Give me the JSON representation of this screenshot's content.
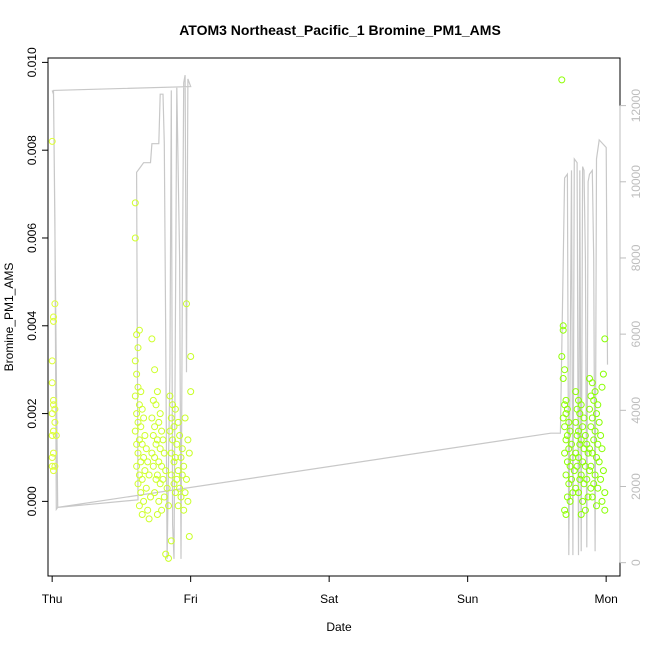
{
  "chart_data": {
    "type": "scatter",
    "title": "ATOM3 Northeast_Pacific_1 Bromine_PM1_AMS",
    "xlabel": "Date",
    "ylabel": "Bromine_PM1_AMS",
    "x_ticks": [
      "Thu",
      "Fri",
      "Sat",
      "Sun",
      "Mon"
    ],
    "x_range_days": [
      -0.03,
      4.1
    ],
    "y_ticks": [
      "0.000",
      "0.002",
      "0.004",
      "0.006",
      "0.008",
      "0.010"
    ],
    "ylim": [
      -0.0017,
      0.0101
    ],
    "y2_ticks": [
      "0",
      "2000",
      "4000",
      "6000",
      "8000",
      "10000",
      "12000"
    ],
    "y2lim": [
      -350,
      13250
    ],
    "grid": false,
    "point_color_start": "#ddff33",
    "point_color_end": "#88ff00",
    "line_color": "#c8c8c8",
    "series": [
      {
        "type": "scatter",
        "note_points": "Bromine_PM1_AMS measurements; x = day offset from Thu 00:00",
        "points": [
          [
            0.0,
            0.0082
          ],
          [
            0.01,
            0.0042
          ],
          [
            0.02,
            0.0045
          ],
          [
            0.01,
            0.0041
          ],
          [
            0.0,
            0.0032
          ],
          [
            0.0,
            0.0027
          ],
          [
            0.01,
            0.0023
          ],
          [
            0.01,
            0.0022
          ],
          [
            0.02,
            0.0021
          ],
          [
            0.0,
            0.002
          ],
          [
            0.02,
            0.0018
          ],
          [
            0.01,
            0.0016
          ],
          [
            0.0,
            0.0015
          ],
          [
            0.03,
            0.0015
          ],
          [
            0.01,
            0.0011
          ],
          [
            0.0,
            0.001
          ],
          [
            0.02,
            0.0008
          ],
          [
            0.0,
            0.0008
          ],
          [
            0.01,
            0.0007
          ],
          [
            0.6,
            0.0068
          ],
          [
            0.6,
            0.006
          ],
          [
            0.61,
            0.0038
          ],
          [
            0.63,
            0.0039
          ],
          [
            0.62,
            0.0035
          ],
          [
            0.6,
            0.0032
          ],
          [
            0.61,
            0.0029
          ],
          [
            0.62,
            0.0026
          ],
          [
            0.64,
            0.0025
          ],
          [
            0.6,
            0.0024
          ],
          [
            0.63,
            0.0022
          ],
          [
            0.65,
            0.0021
          ],
          [
            0.61,
            0.002
          ],
          [
            0.66,
            0.0019
          ],
          [
            0.62,
            0.0018
          ],
          [
            0.64,
            0.0017
          ],
          [
            0.6,
            0.0016
          ],
          [
            0.67,
            0.0015
          ],
          [
            0.63,
            0.0014
          ],
          [
            0.61,
            0.0013
          ],
          [
            0.65,
            0.0013
          ],
          [
            0.68,
            0.0012
          ],
          [
            0.62,
            0.0011
          ],
          [
            0.66,
            0.001
          ],
          [
            0.64,
            0.0009
          ],
          [
            0.69,
            0.0009
          ],
          [
            0.61,
            0.0008
          ],
          [
            0.67,
            0.0007
          ],
          [
            0.63,
            0.0006
          ],
          [
            0.7,
            0.0006
          ],
          [
            0.65,
            0.0005
          ],
          [
            0.62,
            0.0004
          ],
          [
            0.68,
            0.0003
          ],
          [
            0.64,
            0.0002
          ],
          [
            0.71,
            0.0001
          ],
          [
            0.66,
            0.0
          ],
          [
            0.63,
            -0.0001
          ],
          [
            0.69,
            -0.0002
          ],
          [
            0.65,
            -0.0003
          ],
          [
            0.7,
            -0.0004
          ],
          [
            0.72,
            0.0037
          ],
          [
            0.74,
            0.003
          ],
          [
            0.76,
            0.0025
          ],
          [
            0.73,
            0.0023
          ],
          [
            0.75,
            0.0022
          ],
          [
            0.78,
            0.002
          ],
          [
            0.72,
            0.0019
          ],
          [
            0.77,
            0.0018
          ],
          [
            0.74,
            0.0017
          ],
          [
            0.79,
            0.0016
          ],
          [
            0.73,
            0.0015
          ],
          [
            0.76,
            0.0014
          ],
          [
            0.8,
            0.0014
          ],
          [
            0.75,
            0.0013
          ],
          [
            0.78,
            0.0012
          ],
          [
            0.72,
            0.0011
          ],
          [
            0.81,
            0.0011
          ],
          [
            0.74,
            0.001
          ],
          [
            0.77,
            0.0009
          ],
          [
            0.79,
            0.0008
          ],
          [
            0.73,
            0.0008
          ],
          [
            0.82,
            0.0007
          ],
          [
            0.76,
            0.0006
          ],
          [
            0.8,
            0.0005
          ],
          [
            0.75,
            0.0005
          ],
          [
            0.78,
            0.0004
          ],
          [
            0.83,
            0.0003
          ],
          [
            0.74,
            0.0002
          ],
          [
            0.81,
            0.0001
          ],
          [
            0.77,
            0.0
          ],
          [
            0.84,
            -0.0001
          ],
          [
            0.79,
            -0.0002
          ],
          [
            0.76,
            -0.0003
          ],
          [
            0.82,
            -0.0012
          ],
          [
            0.84,
            -0.0013
          ],
          [
            0.86,
            -0.0009
          ],
          [
            0.85,
            0.0024
          ],
          [
            0.87,
            0.0022
          ],
          [
            0.89,
            0.0021
          ],
          [
            0.86,
            0.0019
          ],
          [
            0.91,
            0.0018
          ],
          [
            0.88,
            0.0017
          ],
          [
            0.85,
            0.0016
          ],
          [
            0.92,
            0.0015
          ],
          [
            0.87,
            0.0014
          ],
          [
            0.9,
            0.0013
          ],
          [
            0.94,
            0.0012
          ],
          [
            0.86,
            0.0011
          ],
          [
            0.89,
            0.001
          ],
          [
            0.93,
            0.001
          ],
          [
            0.88,
            0.0009
          ],
          [
            0.95,
            0.0008
          ],
          [
            0.91,
            0.0007
          ],
          [
            0.86,
            0.0006
          ],
          [
            0.94,
            0.0006
          ],
          [
            0.9,
            0.0005
          ],
          [
            0.97,
            0.0005
          ],
          [
            0.88,
            0.0004
          ],
          [
            0.92,
            0.0003
          ],
          [
            0.96,
            0.0002
          ],
          [
            0.89,
            0.0002
          ],
          [
            0.93,
            0.0001
          ],
          [
            0.98,
            0.0
          ],
          [
            0.91,
            -0.0001
          ],
          [
            0.95,
            -0.0002
          ],
          [
            0.99,
            0.0011
          ],
          [
            0.97,
            0.0045
          ],
          [
            1.0,
            0.0033
          ],
          [
            1.0,
            0.0025
          ],
          [
            0.99,
            -0.0008
          ],
          [
            0.96,
            0.0019
          ],
          [
            0.98,
            0.0014
          ],
          [
            3.68,
            0.0096
          ],
          [
            3.69,
            0.004
          ],
          [
            3.69,
            0.0039
          ],
          [
            3.68,
            0.0033
          ],
          [
            3.7,
            0.003
          ],
          [
            3.69,
            0.0028
          ],
          [
            3.71,
            0.0023
          ],
          [
            3.7,
            0.0022
          ],
          [
            3.72,
            0.0021
          ],
          [
            3.71,
            0.002
          ],
          [
            3.69,
            0.0019
          ],
          [
            3.73,
            0.0018
          ],
          [
            3.7,
            0.0017
          ],
          [
            3.74,
            0.0016
          ],
          [
            3.72,
            0.0015
          ],
          [
            3.71,
            0.0014
          ],
          [
            3.75,
            0.0013
          ],
          [
            3.73,
            0.0012
          ],
          [
            3.7,
            0.0011
          ],
          [
            3.76,
            0.001
          ],
          [
            3.72,
            0.0009
          ],
          [
            3.74,
            0.0008
          ],
          [
            3.77,
            0.0007
          ],
          [
            3.71,
            0.0006
          ],
          [
            3.75,
            0.0005
          ],
          [
            3.73,
            0.0004
          ],
          [
            3.78,
            0.0003
          ],
          [
            3.76,
            0.0002
          ],
          [
            3.72,
            0.0001
          ],
          [
            3.74,
            0.0
          ],
          [
            3.7,
            -0.0002
          ],
          [
            3.71,
            -0.0003
          ],
          [
            3.78,
            0.0025
          ],
          [
            3.8,
            0.0023
          ],
          [
            3.82,
            0.0022
          ],
          [
            3.79,
            0.0021
          ],
          [
            3.81,
            0.002
          ],
          [
            3.84,
            0.0019
          ],
          [
            3.78,
            0.0018
          ],
          [
            3.83,
            0.0017
          ],
          [
            3.8,
            0.0016
          ],
          [
            3.85,
            0.0015
          ],
          [
            3.79,
            0.0015
          ],
          [
            3.82,
            0.0014
          ],
          [
            3.86,
            0.0013
          ],
          [
            3.81,
            0.0013
          ],
          [
            3.84,
            0.0012
          ],
          [
            3.78,
            0.0011
          ],
          [
            3.87,
            0.0011
          ],
          [
            3.8,
            0.001
          ],
          [
            3.83,
            0.0009
          ],
          [
            3.85,
            0.0008
          ],
          [
            3.79,
            0.0008
          ],
          [
            3.88,
            0.0007
          ],
          [
            3.82,
            0.0006
          ],
          [
            3.86,
            0.0005
          ],
          [
            3.81,
            0.0005
          ],
          [
            3.84,
            0.0004
          ],
          [
            3.89,
            0.0003
          ],
          [
            3.8,
            0.0002
          ],
          [
            3.87,
            0.0001
          ],
          [
            3.83,
            0.0
          ],
          [
            3.85,
            -0.0002
          ],
          [
            3.82,
            -0.0003
          ],
          [
            3.88,
            0.0028
          ],
          [
            3.9,
            0.0027
          ],
          [
            3.92,
            0.0025
          ],
          [
            3.89,
            0.0024
          ],
          [
            3.91,
            0.0023
          ],
          [
            3.94,
            0.0022
          ],
          [
            3.88,
            0.0021
          ],
          [
            3.93,
            0.002
          ],
          [
            3.9,
            0.0019
          ],
          [
            3.95,
            0.0018
          ],
          [
            3.89,
            0.0017
          ],
          [
            3.92,
            0.0016
          ],
          [
            3.96,
            0.0015
          ],
          [
            3.91,
            0.0014
          ],
          [
            3.94,
            0.0013
          ],
          [
            3.88,
            0.0012
          ],
          [
            3.97,
            0.0012
          ],
          [
            3.9,
            0.0011
          ],
          [
            3.93,
            0.001
          ],
          [
            3.95,
            0.0009
          ],
          [
            3.89,
            0.0008
          ],
          [
            3.98,
            0.0007
          ],
          [
            3.92,
            0.0006
          ],
          [
            3.96,
            0.0005
          ],
          [
            3.91,
            0.0004
          ],
          [
            3.94,
            0.0003
          ],
          [
            3.99,
            0.0002
          ],
          [
            3.9,
            0.0001
          ],
          [
            3.97,
            0.0
          ],
          [
            3.93,
            -0.0001
          ],
          [
            3.99,
            0.0037
          ],
          [
            3.98,
            0.0029
          ],
          [
            3.97,
            0.0026
          ],
          [
            3.99,
            -0.0002
          ]
        ]
      },
      {
        "type": "line",
        "axis": "right",
        "note_line": "grey secondary series, values on right axis; x = day offset from Thu 00:00",
        "points": [
          [
            0.0,
            12400
          ],
          [
            0.01,
            12300
          ],
          [
            0.02,
            9000
          ],
          [
            0.03,
            1400
          ],
          [
            0.04,
            1450
          ],
          [
            0.62,
            1650
          ],
          [
            0.61,
            10250
          ],
          [
            0.64,
            10400
          ],
          [
            0.66,
            10500
          ],
          [
            0.71,
            10500
          ],
          [
            0.72,
            11000
          ],
          [
            0.77,
            11000
          ],
          [
            0.78,
            12300
          ],
          [
            0.8,
            12300
          ],
          [
            0.81,
            11000
          ],
          [
            0.82,
            6000
          ],
          [
            0.83,
            100
          ],
          [
            0.85,
            5000
          ],
          [
            0.86,
            12400
          ],
          [
            0.87,
            1000
          ],
          [
            0.88,
            100
          ],
          [
            0.9,
            12500
          ],
          [
            0.92,
            8000
          ],
          [
            0.93,
            100
          ],
          [
            0.94,
            7000
          ],
          [
            0.95,
            12600
          ],
          [
            0.96,
            12800
          ],
          [
            0.97,
            5000
          ],
          [
            0.98,
            12700
          ],
          [
            1.0,
            12500
          ],
          [
            0.01,
            12400
          ],
          [
            0.04,
            1450
          ],
          [
            3.6,
            3400
          ],
          [
            3.67,
            3400
          ],
          [
            3.7,
            10100
          ],
          [
            3.72,
            10200
          ],
          [
            3.73,
            200
          ],
          [
            3.75,
            10300
          ],
          [
            3.76,
            200
          ],
          [
            3.77,
            10600
          ],
          [
            3.79,
            10500
          ],
          [
            3.8,
            200
          ],
          [
            3.81,
            10300
          ],
          [
            3.82,
            300
          ],
          [
            3.83,
            10400
          ],
          [
            3.84,
            10300
          ],
          [
            3.85,
            8000
          ],
          [
            3.86,
            400
          ],
          [
            3.87,
            10000
          ],
          [
            3.88,
            10200
          ],
          [
            3.9,
            10300
          ],
          [
            3.91,
            8000
          ],
          [
            3.92,
            300
          ],
          [
            3.93,
            10600
          ],
          [
            3.95,
            11100
          ],
          [
            4.0,
            10900
          ],
          [
            4.01,
            5200
          ]
        ]
      }
    ]
  }
}
